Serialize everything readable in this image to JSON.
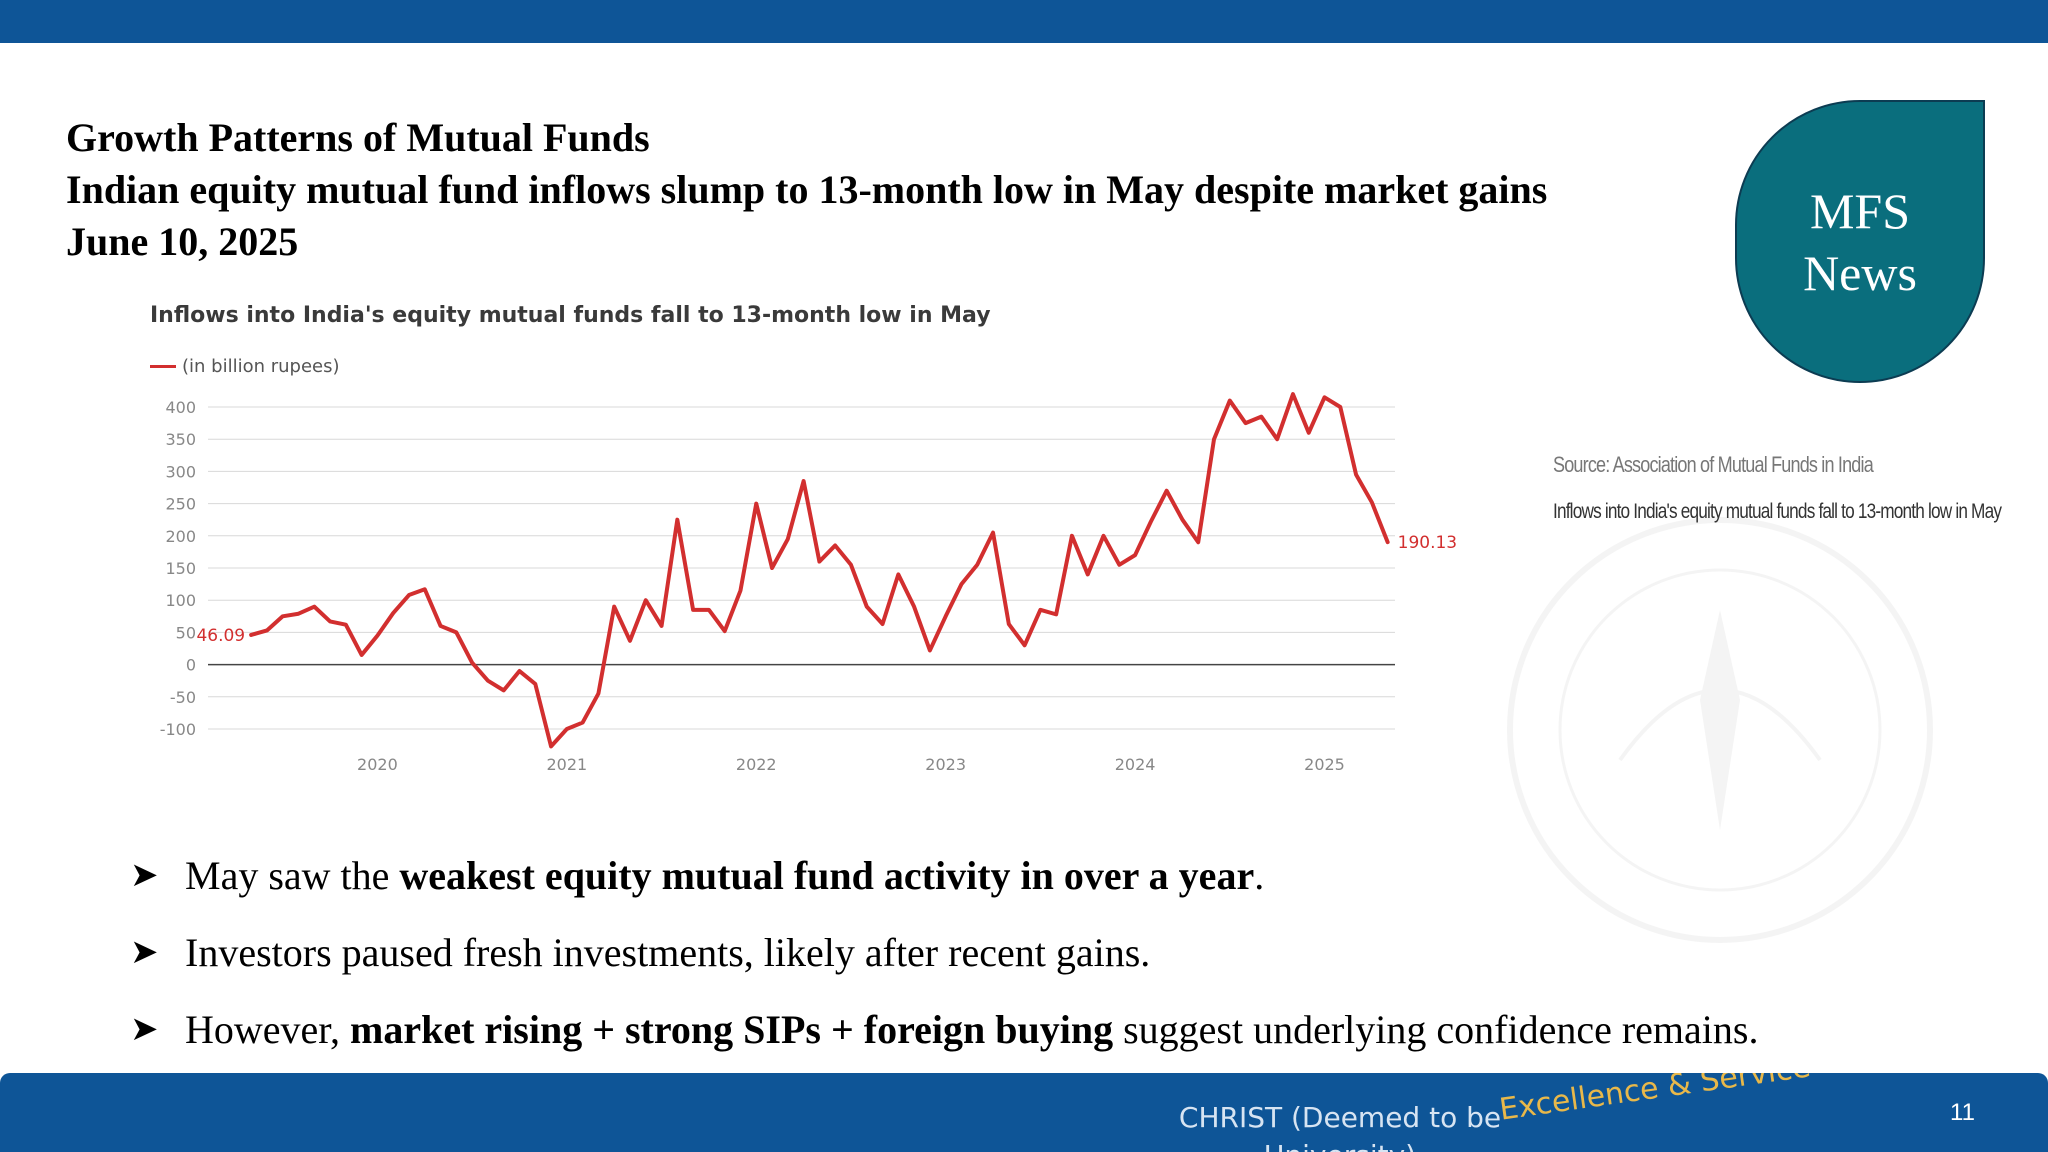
{
  "heading": {
    "line1": "Growth Patterns of Mutual Funds",
    "line2": "Indian equity mutual fund inflows slump to 13-month low in May despite market gains",
    "line3": "June 10, 2025"
  },
  "badge": {
    "line1": "MFS",
    "line2": "News"
  },
  "source_note": {
    "source": "Source: Association of Mutual Funds in India",
    "caption": "Inflows into India's equity mutual funds fall to 13-month low in May"
  },
  "chart": {
    "title": "Inflows into India's equity mutual funds fall to 13-month low in May",
    "legend": "(in billion rupees)",
    "first_label": "46.09",
    "last_label": "190.13"
  },
  "chart_data": {
    "type": "line",
    "title": "Inflows into India's equity mutual funds fall to 13-month low in May",
    "xlabel": "",
    "ylabel": "",
    "series": [
      {
        "name": "(in billion rupees)",
        "color": "#d22f2f",
        "x": [
          "2019-05",
          "2019-06",
          "2019-07",
          "2019-08",
          "2019-09",
          "2019-10",
          "2019-11",
          "2019-12",
          "2020-01",
          "2020-02",
          "2020-03",
          "2020-04",
          "2020-05",
          "2020-06",
          "2020-07",
          "2020-08",
          "2020-09",
          "2020-10",
          "2020-11",
          "2020-12",
          "2021-01",
          "2021-02",
          "2021-03",
          "2021-04",
          "2021-05",
          "2021-06",
          "2021-07",
          "2021-08",
          "2021-09",
          "2021-10",
          "2021-11",
          "2021-12",
          "2022-01",
          "2022-02",
          "2022-03",
          "2022-04",
          "2022-05",
          "2022-06",
          "2022-07",
          "2022-08",
          "2022-09",
          "2022-10",
          "2022-11",
          "2022-12",
          "2023-01",
          "2023-02",
          "2023-03",
          "2023-04",
          "2023-05",
          "2023-06",
          "2023-07",
          "2023-08",
          "2023-09",
          "2023-10",
          "2023-11",
          "2023-12",
          "2024-01",
          "2024-02",
          "2024-03",
          "2024-04",
          "2024-05",
          "2024-06",
          "2024-07",
          "2024-08",
          "2024-09",
          "2024-10",
          "2024-11",
          "2024-12",
          "2025-01",
          "2025-02",
          "2025-03",
          "2025-04",
          "2025-05"
        ],
        "values": [
          46.09,
          53,
          75,
          79,
          90,
          67,
          62,
          15,
          45,
          80,
          108,
          117,
          60,
          50,
          3,
          -25,
          -40,
          -10,
          -30,
          -127,
          -100,
          -90,
          -45,
          90,
          37,
          100,
          60,
          225,
          85,
          85,
          52,
          115,
          250,
          150,
          195,
          285,
          160,
          185,
          155,
          90,
          63,
          140,
          90,
          22,
          75,
          125,
          155,
          205,
          63,
          30,
          85,
          78,
          200,
          140,
          200,
          155,
          170,
          222,
          270,
          225,
          190,
          350,
          410,
          375,
          385,
          350,
          420,
          360,
          415,
          400,
          295,
          252,
          190.13
        ]
      }
    ],
    "x_ticks": [
      "2020",
      "2021",
      "2022",
      "2023",
      "2024",
      "2025"
    ],
    "y_ticks": [
      400,
      350,
      300,
      250,
      200,
      150,
      100,
      50,
      0,
      -50,
      -100
    ],
    "ylim": [
      -100,
      400
    ],
    "grid": true,
    "legend": "top-left",
    "data_labels": [
      "46.09",
      "190.13"
    ]
  },
  "bullets": [
    {
      "pre": "May saw the ",
      "bold": "weakest equity mutual fund activity in over a year",
      "post": "."
    },
    {
      "pre": "Investors paused fresh investments, likely after recent gains.",
      "bold": "",
      "post": ""
    },
    {
      "pre": "However, ",
      "bold": "market rising + strong SIPs + foreign buying",
      "post": " suggest underlying confidence remains."
    }
  ],
  "bullet_icon": "arrowhead-bullet-icon",
  "footer": {
    "university": "CHRIST (Deemed to be University)",
    "motto": "Excellence & Service",
    "page_number": "11"
  },
  "colors": {
    "bar_blue": "#0e5597",
    "badge_teal": "#0a6e7d",
    "line_red": "#d22f2f",
    "motto_gold": "#e8b84a"
  }
}
